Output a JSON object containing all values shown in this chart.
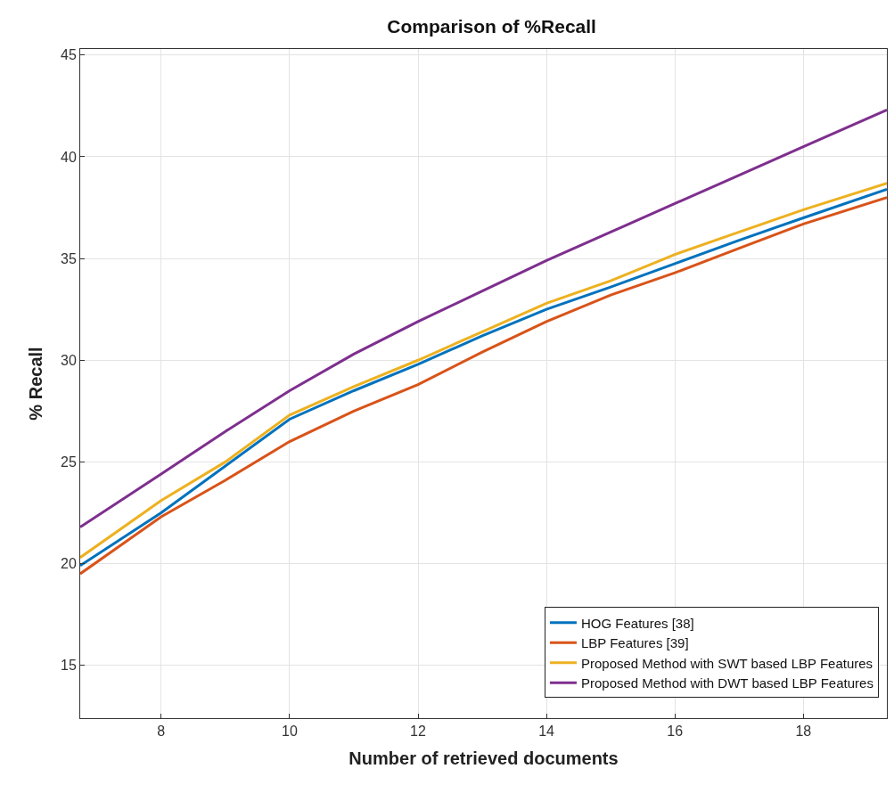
{
  "chart_data": {
    "type": "line",
    "title": "Comparison of %Recall",
    "xlabel": "Number of retrieved documents",
    "ylabel": "% Recall",
    "x": [
      6.74,
      8,
      9,
      10,
      11,
      12,
      13,
      14,
      15,
      16,
      17,
      18,
      19.3
    ],
    "series": [
      {
        "name": "HOG Features [38]",
        "color": "#0072bd",
        "values": [
          19.9,
          22.5,
          24.8,
          27.1,
          28.5,
          29.8,
          31.2,
          32.5,
          33.6,
          34.75,
          35.9,
          37.0,
          38.4
        ]
      },
      {
        "name": "LBP Features [39]",
        "color": "#d95319",
        "values": [
          19.5,
          22.3,
          24.1,
          26.0,
          27.5,
          28.8,
          30.4,
          31.9,
          33.2,
          34.3,
          35.5,
          36.7,
          38.0
        ]
      },
      {
        "name": "Proposed Method with SWT based LBP Features",
        "color": "#edb120",
        "values": [
          20.3,
          23.1,
          25.0,
          27.3,
          28.7,
          30.0,
          31.4,
          32.8,
          33.9,
          35.2,
          36.3,
          37.4,
          38.7
        ]
      },
      {
        "name": "Proposed Method with DWT based LBP Features",
        "color": "#7e2f8e",
        "values": [
          21.8,
          24.4,
          26.5,
          28.5,
          30.3,
          31.9,
          33.4,
          34.9,
          36.3,
          37.7,
          39.1,
          40.5,
          42.3
        ]
      }
    ],
    "xlim": [
      6.74,
      19.3
    ],
    "ylim": [
      12.4,
      45.3
    ],
    "xticks": [
      8,
      10,
      12,
      14,
      16,
      18
    ],
    "yticks": [
      15,
      20,
      25,
      30,
      35,
      40,
      45
    ],
    "grid": true,
    "legend": "bottom right",
    "marker": "none",
    "line_style": "solid"
  }
}
